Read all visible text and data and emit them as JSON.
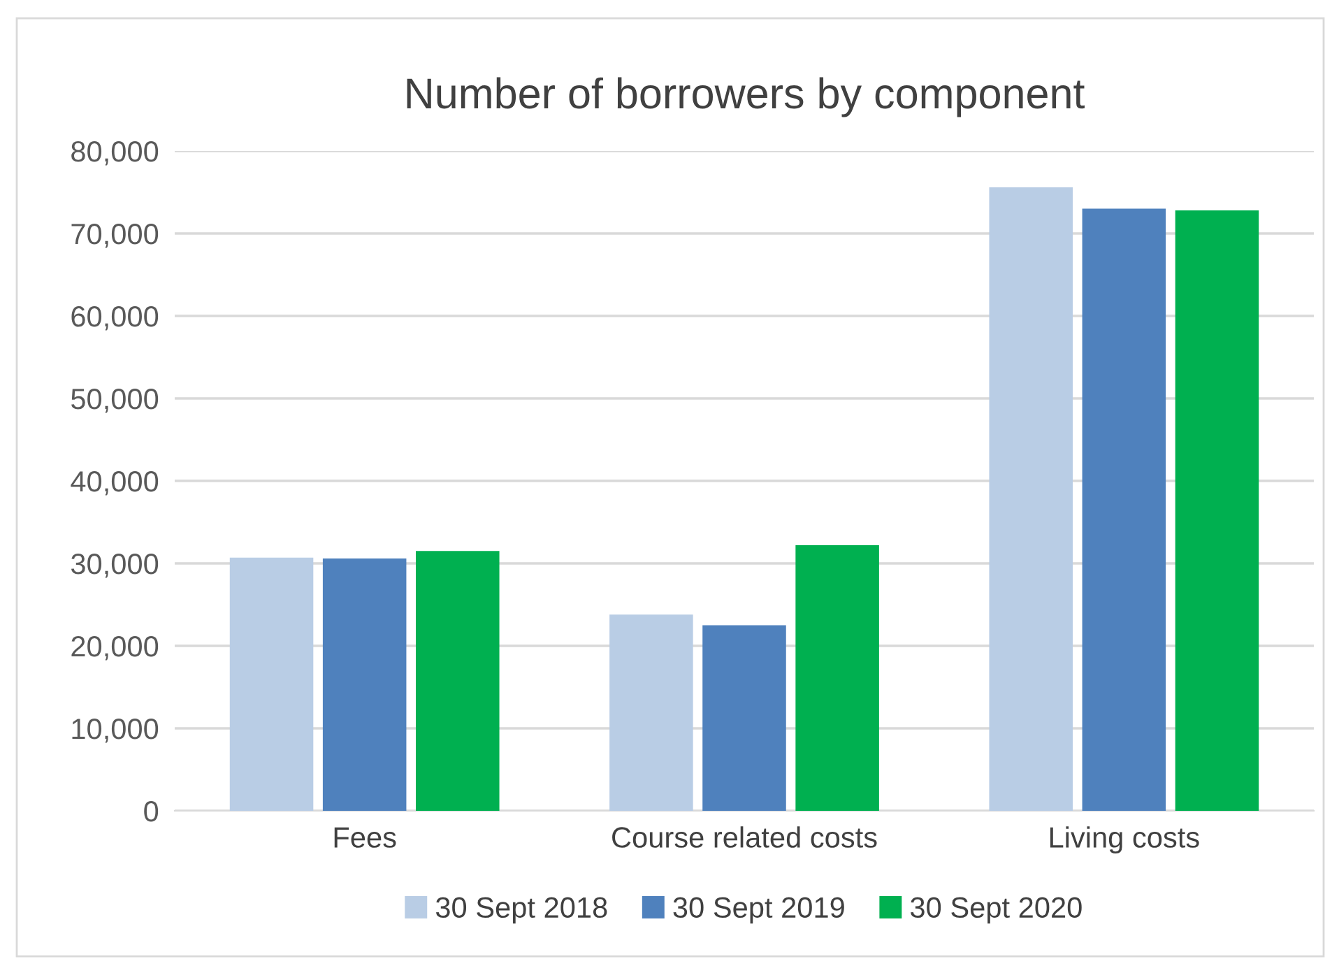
{
  "chart_data": {
    "type": "bar",
    "title": "Number of borrowers by component",
    "categories": [
      "Fees",
      "Course related costs",
      "Living costs"
    ],
    "series": [
      {
        "name": "30 Sept 2018",
        "color": "#b9cde5",
        "values": [
          30700,
          23800,
          75600
        ]
      },
      {
        "name": "30 Sept 2019",
        "color": "#4f81bd",
        "values": [
          30600,
          22500,
          73000
        ]
      },
      {
        "name": "30 Sept 2020",
        "color": "#00b050",
        "values": [
          31500,
          32200,
          72800
        ]
      }
    ],
    "ylim": [
      0,
      80000
    ],
    "yticks": [
      {
        "value": 0,
        "label": "0"
      },
      {
        "value": 10000,
        "label": "10,000"
      },
      {
        "value": 20000,
        "label": "20,000"
      },
      {
        "value": 30000,
        "label": "30,000"
      },
      {
        "value": 40000,
        "label": "40,000"
      },
      {
        "value": 50000,
        "label": "50,000"
      },
      {
        "value": 60000,
        "label": "60,000"
      },
      {
        "value": 70000,
        "label": "70,000"
      },
      {
        "value": 80000,
        "label": "80,000"
      }
    ],
    "grid": "y",
    "legend": "bottom"
  }
}
